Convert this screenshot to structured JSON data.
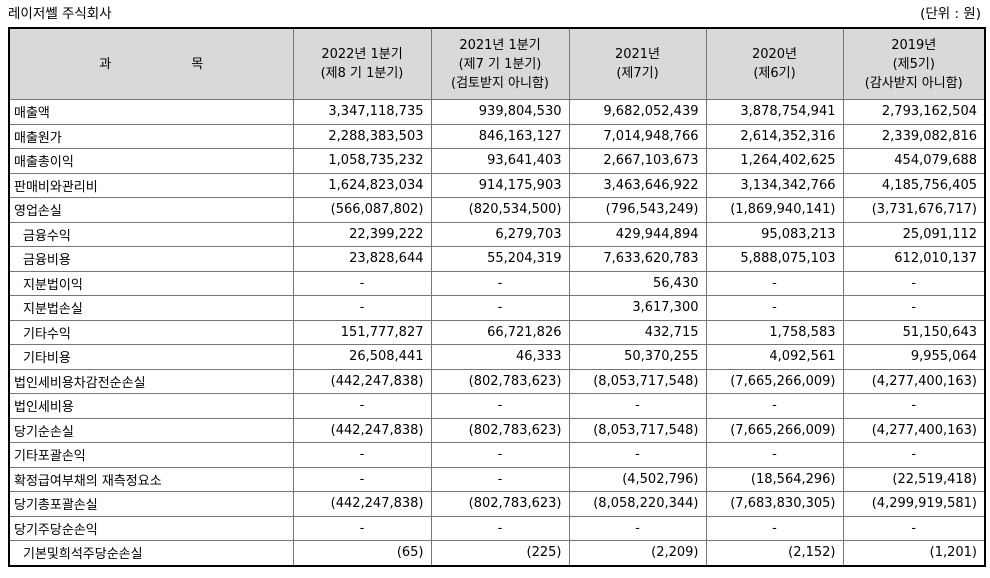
{
  "header": {
    "company": "레이저쎌 주식회사",
    "unit": "(단위 : 원)"
  },
  "colors": {
    "header_bg": "#d9d9d9",
    "grid": "#767676",
    "frame": "#000000"
  },
  "table": {
    "account_header": {
      "left": "과",
      "right": "목"
    },
    "period_headers": [
      {
        "lines": [
          "2022년 1분기",
          "(제8 기 1분기)"
        ]
      },
      {
        "lines": [
          "2021년 1분기",
          "(제7 기 1분기)",
          "(검토받지 아니함)"
        ]
      },
      {
        "lines": [
          "2021년",
          "(제7기)"
        ]
      },
      {
        "lines": [
          "2020년",
          "(제6기)"
        ]
      },
      {
        "lines": [
          "2019년",
          "(제5기)",
          "(감사받지 아니함)"
        ]
      }
    ],
    "rows": [
      {
        "label": "매출액",
        "indent": false,
        "values": [
          "3,347,118,735",
          "939,804,530",
          "9,682,052,439",
          "3,878,754,941",
          "2,793,162,504"
        ]
      },
      {
        "label": "매출원가",
        "indent": false,
        "values": [
          "2,288,383,503",
          "846,163,127",
          "7,014,948,766",
          "2,614,352,316",
          "2,339,082,816"
        ]
      },
      {
        "label": "매출총이익",
        "indent": false,
        "values": [
          "1,058,735,232",
          "93,641,403",
          "2,667,103,673",
          "1,264,402,625",
          "454,079,688"
        ]
      },
      {
        "label": "판매비와관리비",
        "indent": false,
        "values": [
          "1,624,823,034",
          "914,175,903",
          "3,463,646,922",
          "3,134,342,766",
          "4,185,756,405"
        ]
      },
      {
        "label": "영업손실",
        "indent": false,
        "values": [
          "(566,087,802)",
          "(820,534,500)",
          "(796,543,249)",
          "(1,869,940,141)",
          "(3,731,676,717)"
        ]
      },
      {
        "label": "금융수익",
        "indent": true,
        "values": [
          "22,399,222",
          "6,279,703",
          "429,944,894",
          "95,083,213",
          "25,091,112"
        ]
      },
      {
        "label": "금융비용",
        "indent": true,
        "values": [
          "23,828,644",
          "55,204,319",
          "7,633,620,783",
          "5,888,075,103",
          "612,010,137"
        ]
      },
      {
        "label": "지분법이익",
        "indent": true,
        "values": [
          "-",
          "-",
          "56,430",
          "-",
          "-"
        ]
      },
      {
        "label": "지분법손실",
        "indent": true,
        "values": [
          "-",
          "-",
          "3,617,300",
          "-",
          "-"
        ]
      },
      {
        "label": "기타수익",
        "indent": true,
        "values": [
          "151,777,827",
          "66,721,826",
          "432,715",
          "1,758,583",
          "51,150,643"
        ]
      },
      {
        "label": "기타비용",
        "indent": true,
        "values": [
          "26,508,441",
          "46,333",
          "50,370,255",
          "4,092,561",
          "9,955,064"
        ]
      },
      {
        "label": "법인세비용차감전순손실",
        "indent": false,
        "values": [
          "(442,247,838)",
          "(802,783,623)",
          "(8,053,717,548)",
          "(7,665,266,009)",
          "(4,277,400,163)"
        ]
      },
      {
        "label": "법인세비용",
        "indent": false,
        "values": [
          "-",
          "-",
          "-",
          "-",
          "-"
        ]
      },
      {
        "label": "당기순손실",
        "indent": false,
        "values": [
          "(442,247,838)",
          "(802,783,623)",
          "(8,053,717,548)",
          "(7,665,266,009)",
          "(4,277,400,163)"
        ]
      },
      {
        "label": "기타포괄손익",
        "indent": false,
        "values": [
          "-",
          "-",
          "-",
          "-",
          "-"
        ]
      },
      {
        "label": "확정급여부채의 재측정요소",
        "indent": false,
        "values": [
          "-",
          "-",
          "(4,502,796)",
          "(18,564,296)",
          "(22,519,418)"
        ]
      },
      {
        "label": "당기총포괄손실",
        "indent": false,
        "values": [
          "(442,247,838)",
          "(802,783,623)",
          "(8,058,220,344)",
          "(7,683,830,305)",
          "(4,299,919,581)"
        ]
      },
      {
        "label": "당기주당순손익",
        "indent": false,
        "values": [
          "-",
          "-",
          "-",
          "-",
          "-"
        ]
      },
      {
        "label": "기본및희석주당순손실",
        "indent": true,
        "values": [
          "(65)",
          "(225)",
          "(2,209)",
          "(2,152)",
          "(1,201)"
        ]
      }
    ]
  }
}
